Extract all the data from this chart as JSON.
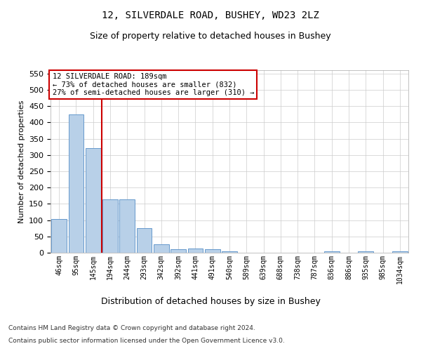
{
  "title_line1": "12, SILVERDALE ROAD, BUSHEY, WD23 2LZ",
  "title_line2": "Size of property relative to detached houses in Bushey",
  "xlabel": "Distribution of detached houses by size in Bushey",
  "ylabel": "Number of detached properties",
  "footer_line1": "Contains HM Land Registry data © Crown copyright and database right 2024.",
  "footer_line2": "Contains public sector information licensed under the Open Government Licence v3.0.",
  "categories": [
    "46sqm",
    "95sqm",
    "145sqm",
    "194sqm",
    "244sqm",
    "293sqm",
    "342sqm",
    "392sqm",
    "441sqm",
    "491sqm",
    "540sqm",
    "589sqm",
    "639sqm",
    "688sqm",
    "738sqm",
    "787sqm",
    "836sqm",
    "886sqm",
    "935sqm",
    "985sqm",
    "1034sqm"
  ],
  "values": [
    103,
    425,
    320,
    163,
    163,
    75,
    25,
    10,
    12,
    10,
    5,
    0,
    0,
    0,
    0,
    0,
    5,
    0,
    5,
    0,
    5
  ],
  "bar_color": "#b8d0e8",
  "bar_edge_color": "#6699cc",
  "vline_x_index": 3,
  "vline_color": "#cc0000",
  "annotation_line1": "12 SILVERDALE ROAD: 189sqm",
  "annotation_line2": "← 73% of detached houses are smaller (832)",
  "annotation_line3": "27% of semi-detached houses are larger (310) →",
  "annotation_box_color": "#ffffff",
  "annotation_box_edge_color": "#cc0000",
  "ylim": [
    0,
    560
  ],
  "yticks": [
    0,
    50,
    100,
    150,
    200,
    250,
    300,
    350,
    400,
    450,
    500,
    550
  ],
  "background_color": "#ffffff",
  "grid_color": "#cccccc",
  "title1_fontsize": 10,
  "title2_fontsize": 9,
  "ylabel_fontsize": 8,
  "xlabel_fontsize": 9,
  "ytick_fontsize": 8,
  "xtick_fontsize": 7,
  "annotation_fontsize": 7.5,
  "footer_fontsize": 6.5
}
